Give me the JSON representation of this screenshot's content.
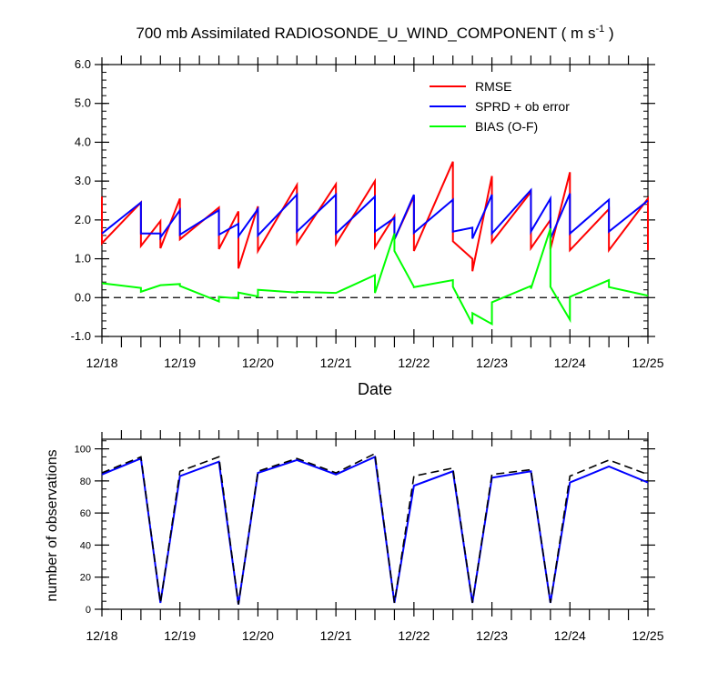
{
  "chart_data": [
    {
      "type": "line",
      "title_main": "700 mb Assimilated RADIOSONDE_U_WIND_COMPONENT ( m s",
      "title_sup": "-1",
      "title_end": " )",
      "xlabel": "Date",
      "ylabel": "",
      "xlim": [
        0,
        7
      ],
      "ylim": [
        -1.0,
        6.0
      ],
      "y_ticks": [
        "-1.0",
        "0.0",
        "1.0",
        "2.0",
        "3.0",
        "4.0",
        "5.0",
        "6.0"
      ],
      "x_ticks": [
        "12/18",
        "12/19",
        "12/20",
        "12/21",
        "12/22",
        "12/23",
        "12/24",
        "12/25"
      ],
      "zero_line": "dashed",
      "legend_position": "top-right",
      "series": [
        {
          "name": "RMSE",
          "color": "#ff0000",
          "points": [
            [
              0,
              2.6
            ],
            [
              0,
              1.4
            ],
            [
              0.5,
              2.45
            ],
            [
              0.5,
              1.33
            ],
            [
              0.75,
              1.97
            ],
            [
              0.75,
              1.27
            ],
            [
              1,
              2.55
            ],
            [
              1,
              1.5
            ],
            [
              1.5,
              2.32
            ],
            [
              1.5,
              1.25
            ],
            [
              1.75,
              2.22
            ],
            [
              1.75,
              0.75
            ],
            [
              2,
              2.35
            ],
            [
              2,
              1.2
            ],
            [
              2.5,
              2.9
            ],
            [
              2.5,
              1.4
            ],
            [
              3,
              2.92
            ],
            [
              3,
              1.38
            ],
            [
              3.5,
              3.0
            ],
            [
              3.5,
              1.3
            ],
            [
              3.75,
              2.1
            ],
            [
              3.75,
              1.5
            ],
            [
              4,
              2.6
            ],
            [
              4,
              1.2
            ],
            [
              4.5,
              3.5
            ],
            [
              4.5,
              1.45
            ],
            [
              4.75,
              1.0
            ],
            [
              4.75,
              0.68
            ],
            [
              5,
              3.13
            ],
            [
              5,
              1.43
            ],
            [
              5.5,
              2.72
            ],
            [
              5.5,
              1.27
            ],
            [
              5.75,
              2.0
            ],
            [
              5.75,
              1.25
            ],
            [
              6,
              3.23
            ],
            [
              6,
              1.22
            ],
            [
              6.5,
              2.28
            ],
            [
              6.5,
              1.22
            ],
            [
              7,
              2.55
            ],
            [
              7,
              1.22
            ]
          ]
        },
        {
          "name": "SPRD + ob error",
          "color": "#0000ff",
          "points": [
            [
              0,
              1.65
            ],
            [
              0.5,
              2.45
            ],
            [
              0.5,
              1.65
            ],
            [
              0.75,
              1.65
            ],
            [
              0.75,
              1.55
            ],
            [
              1,
              2.25
            ],
            [
              1,
              1.62
            ],
            [
              1.5,
              2.25
            ],
            [
              1.5,
              1.62
            ],
            [
              1.75,
              1.9
            ],
            [
              1.75,
              1.58
            ],
            [
              2,
              2.28
            ],
            [
              2,
              1.6
            ],
            [
              2.5,
              2.65
            ],
            [
              2.5,
              1.7
            ],
            [
              3,
              2.65
            ],
            [
              3,
              1.65
            ],
            [
              3.5,
              2.6
            ],
            [
              3.5,
              1.7
            ],
            [
              3.75,
              2.05
            ],
            [
              3.75,
              1.5
            ],
            [
              4,
              2.65
            ],
            [
              4,
              1.67
            ],
            [
              4.5,
              2.52
            ],
            [
              4.5,
              1.7
            ],
            [
              4.75,
              1.8
            ],
            [
              4.75,
              1.52
            ],
            [
              5,
              2.65
            ],
            [
              5,
              1.65
            ],
            [
              5.5,
              2.77
            ],
            [
              5.5,
              1.7
            ],
            [
              5.75,
              2.55
            ],
            [
              5.75,
              1.52
            ],
            [
              6,
              2.68
            ],
            [
              6,
              1.65
            ],
            [
              6.5,
              2.52
            ],
            [
              6.5,
              1.7
            ],
            [
              7,
              2.5
            ]
          ]
        },
        {
          "name": "BIAS (O-F)",
          "color": "#00ff00",
          "points": [
            [
              0,
              0.37
            ],
            [
              0.5,
              0.25
            ],
            [
              0.5,
              0.15
            ],
            [
              0.75,
              0.32
            ],
            [
              1,
              0.35
            ],
            [
              1,
              0.3
            ],
            [
              1.5,
              -0.1
            ],
            [
              1.5,
              0.02
            ],
            [
              1.75,
              -0.02
            ],
            [
              1.75,
              0.13
            ],
            [
              2,
              0.03
            ],
            [
              2,
              0.2
            ],
            [
              2.5,
              0.13
            ],
            [
              2.5,
              0.15
            ],
            [
              3,
              0.12
            ],
            [
              3.5,
              0.58
            ],
            [
              3.5,
              0.12
            ],
            [
              3.75,
              1.65
            ],
            [
              3.75,
              1.2
            ],
            [
              4,
              0.28
            ],
            [
              4,
              0.27
            ],
            [
              4.5,
              0.45
            ],
            [
              4.5,
              0.28
            ],
            [
              4.75,
              -0.68
            ],
            [
              4.75,
              -0.4
            ],
            [
              5,
              -0.68
            ],
            [
              5,
              -0.12
            ],
            [
              5.5,
              0.3
            ],
            [
              5.5,
              0.23
            ],
            [
              5.75,
              1.78
            ],
            [
              5.75,
              0.28
            ],
            [
              6,
              -0.57
            ],
            [
              6,
              0.02
            ],
            [
              6.5,
              0.45
            ],
            [
              6.5,
              0.27
            ],
            [
              7,
              0.05
            ]
          ]
        }
      ]
    },
    {
      "type": "line",
      "title": "",
      "xlabel": "",
      "ylabel": "number of observations",
      "xlim": [
        0,
        7
      ],
      "ylim": [
        0,
        106
      ],
      "y_ticks": [
        "0",
        "20",
        "40",
        "60",
        "80",
        "100"
      ],
      "x_ticks": [
        "12/18",
        "12/19",
        "12/20",
        "12/21",
        "12/22",
        "12/23",
        "12/24",
        "12/25"
      ],
      "series": [
        {
          "name": "",
          "color": "#0000ff",
          "style": "solid",
          "points": [
            [
              0,
              84
            ],
            [
              0.5,
              94
            ],
            [
              0.75,
              4
            ],
            [
              1,
              83
            ],
            [
              1.5,
              92
            ],
            [
              1.75,
              3
            ],
            [
              2,
              85
            ],
            [
              2.5,
              93
            ],
            [
              3,
              84
            ],
            [
              3.5,
              95
            ],
            [
              3.75,
              4
            ],
            [
              4,
              77
            ],
            [
              4.5,
              86
            ],
            [
              4.75,
              4
            ],
            [
              5,
              82
            ],
            [
              5.5,
              86
            ],
            [
              5.75,
              4
            ],
            [
              6,
              79
            ],
            [
              6.5,
              89
            ],
            [
              7,
              79
            ]
          ]
        },
        {
          "name": "",
          "color": "#000000",
          "style": "dashed",
          "points": [
            [
              0,
              85
            ],
            [
              0.5,
              95
            ],
            [
              0.75,
              4
            ],
            [
              1,
              86
            ],
            [
              1.5,
              95
            ],
            [
              1.75,
              3
            ],
            [
              2,
              86
            ],
            [
              2.5,
              94
            ],
            [
              3,
              85
            ],
            [
              3.5,
              97
            ],
            [
              3.75,
              4
            ],
            [
              4,
              83
            ],
            [
              4.5,
              88
            ],
            [
              4.75,
              4
            ],
            [
              5,
              84
            ],
            [
              5.5,
              87
            ],
            [
              5.75,
              4
            ],
            [
              6,
              83
            ],
            [
              6.5,
              93
            ],
            [
              7,
              84
            ]
          ]
        }
      ]
    }
  ]
}
